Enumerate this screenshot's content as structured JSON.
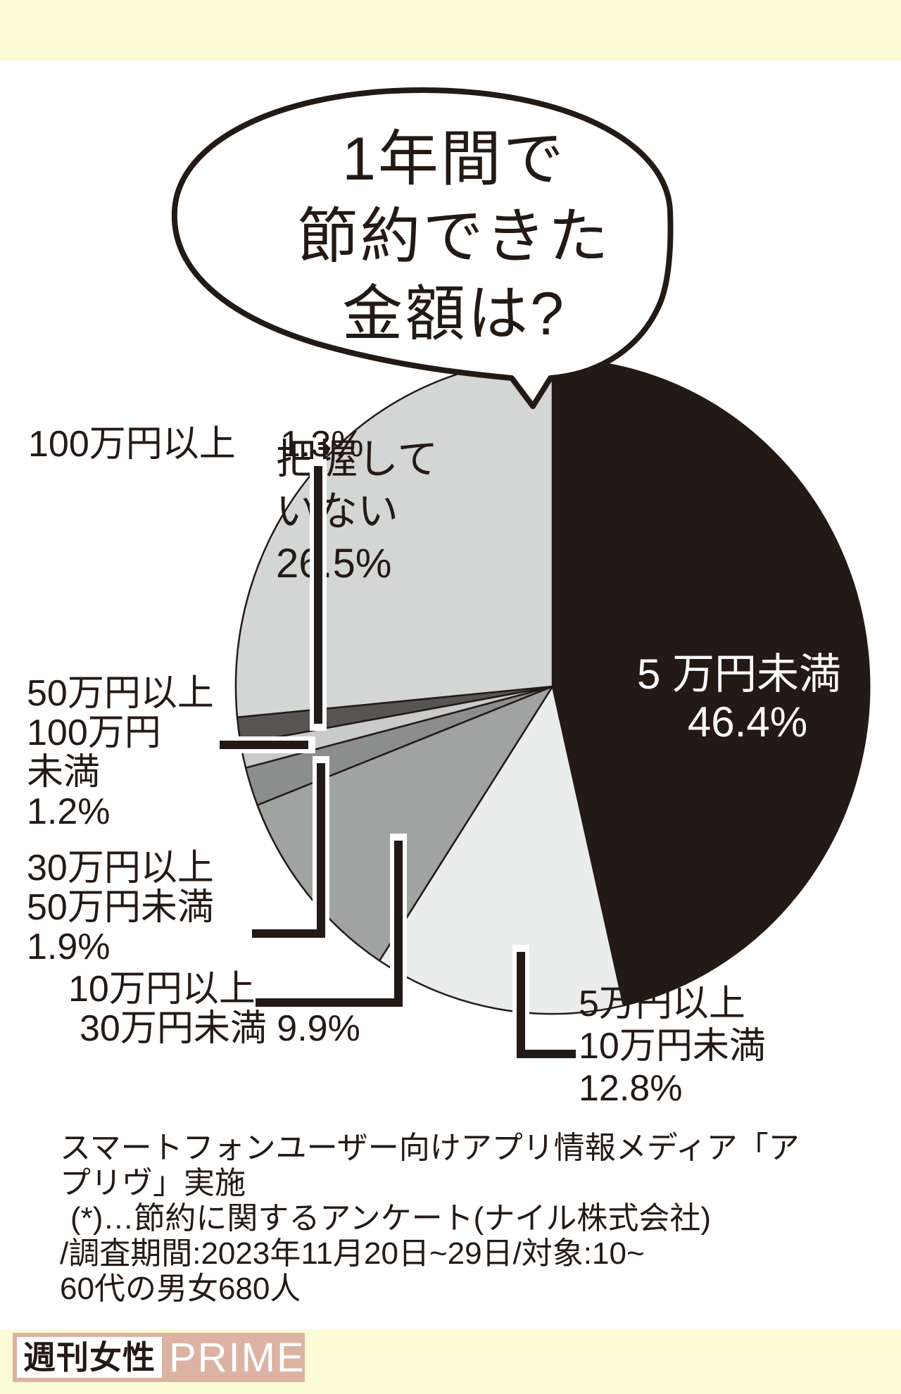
{
  "page": {
    "background": "#ffffff",
    "band_color": "#fbfbd5",
    "ink": "#241a15"
  },
  "bubble": {
    "lines": [
      "1年間で",
      "節約できた",
      "金額は?"
    ]
  },
  "chart_data": {
    "type": "pie",
    "title": "1年間で節約できた金額は?",
    "unit": "%",
    "start_angle": "12時の位置から時計回り",
    "legend_position": "none",
    "segments": [
      {
        "label": "5万円未満",
        "value": 46.4,
        "color": "#241a15"
      },
      {
        "label": "5万円以上10万円未満",
        "value": 12.8,
        "color": "#ebecec"
      },
      {
        "label": "10万円以上30万円未満",
        "value": 9.9,
        "color": "#a1a2a2"
      },
      {
        "label": "30万円以上50万円未満",
        "value": 1.9,
        "color": "#8c8d8d"
      },
      {
        "label": "50万円以上100万円未満",
        "value": 1.2,
        "color": "#c9caca"
      },
      {
        "label": "100万円以上",
        "value": 1.3,
        "color": "#575454"
      },
      {
        "label": "把握していない",
        "value": 26.5,
        "color": "#d4d5d5"
      }
    ]
  },
  "labels": {
    "under5_line1": "5 万円未満",
    "under5_pct": "46.4%",
    "haaku_line1": "把握して",
    "haaku_line2": "いない",
    "haaku_pct": "26.5%",
    "over100_text": "100万円以上",
    "over100_pct": "1.3%",
    "b50to100_line1": "50万円以上",
    "b50to100_line2": "100万円",
    "b50to100_line3": "未満",
    "b50to100_pct": "1.2%",
    "b30to50_line1": "30万円以上",
    "b30to50_line2": "50万円未満",
    "b30to50_pct": "1.9%",
    "b10to30_line1": "10万円以上",
    "b10to30_line2": "30万円未満 9.9%",
    "b5to10_line1": "5万円以上",
    "b5to10_line2": "10万円未満",
    "b5to10_pct": "12.8%"
  },
  "footer": {
    "lines": [
      "スマートフォンユーザー向けアプリ情報メディア「ア",
      "プリヴ」実施",
      "(*)…節約に関するアンケート(ナイル株式会社)",
      "/調査期間:2023年11月20日~29日/対象:10~",
      "60代の男女680人"
    ]
  },
  "logo": {
    "jp": "週刊女性",
    "en": "PRIME",
    "pink": "#dcb3a3"
  }
}
